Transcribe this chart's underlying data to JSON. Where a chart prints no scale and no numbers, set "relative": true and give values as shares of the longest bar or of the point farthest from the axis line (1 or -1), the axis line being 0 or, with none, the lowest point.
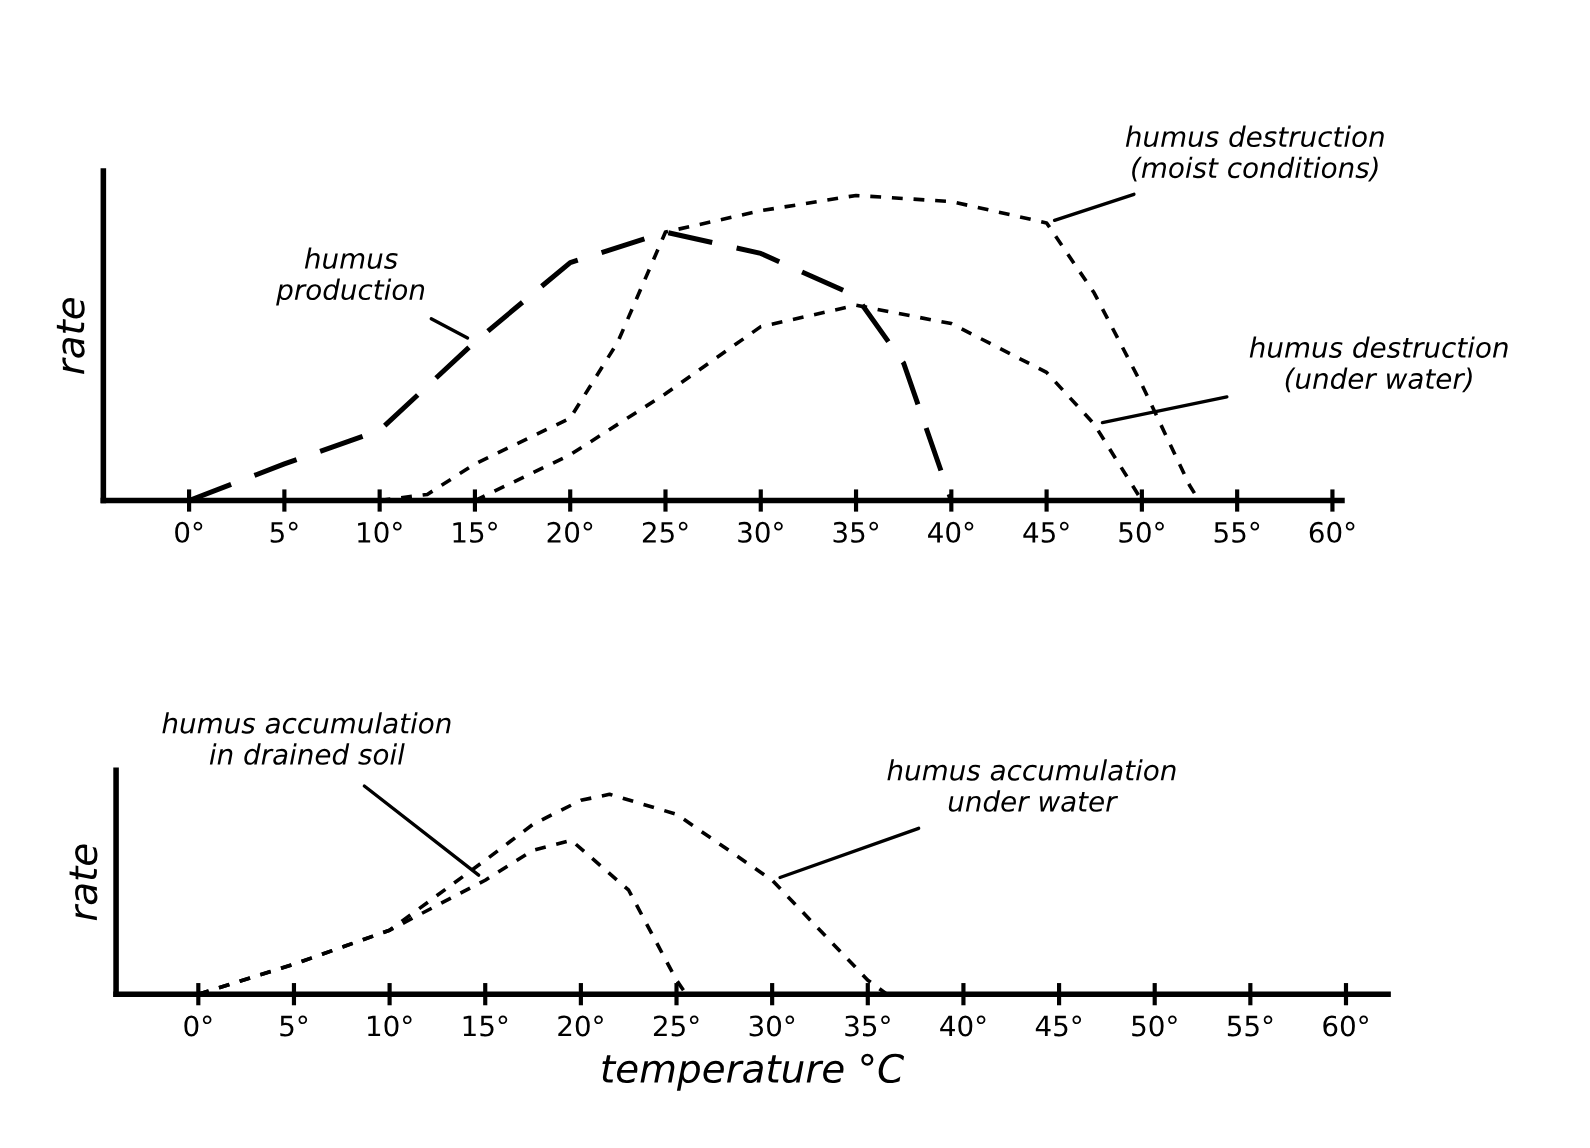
{
  "chart_data": [
    {
      "type": "line",
      "relative": true,
      "ylabel": "rate",
      "grid": false,
      "legend": false,
      "marker": "none",
      "tick_labels": "x",
      "xlim": [
        -4.5,
        60.5
      ],
      "xticks": [
        {
          "value": 0,
          "label": "0°"
        },
        {
          "value": 5,
          "label": "5°"
        },
        {
          "value": 10,
          "label": "10°"
        },
        {
          "value": 15,
          "label": "15°"
        },
        {
          "value": 20,
          "label": "20°"
        },
        {
          "value": 25,
          "label": "25°"
        },
        {
          "value": 30,
          "label": "30°"
        },
        {
          "value": 35,
          "label": "35°"
        },
        {
          "value": 40,
          "label": "40°"
        },
        {
          "value": 45,
          "label": "45°"
        },
        {
          "value": 50,
          "label": "50°"
        },
        {
          "value": 55,
          "label": "55°"
        },
        {
          "value": 60,
          "label": "60°"
        }
      ],
      "series": [
        {
          "name": "humus\nproduction",
          "color": "#000000",
          "line_style": "dashed",
          "x": [
            0,
            5,
            10,
            15,
            20,
            25,
            30,
            35,
            37.5,
            40
          ],
          "values": [
            0,
            0.12,
            0.23,
            0.52,
            0.78,
            0.88,
            0.81,
            0.67,
            0.45,
            0
          ]
        },
        {
          "name": "humus destruction\n(moist conditions)",
          "color": "#000000",
          "line_style": "dotted",
          "x": [
            10,
            12.5,
            15,
            20,
            22.5,
            25,
            30,
            35,
            40,
            45,
            47.5,
            50,
            52.5,
            53
          ],
          "values": [
            0,
            0.02,
            0.12,
            0.27,
            0.52,
            0.88,
            0.95,
            1,
            0.98,
            0.91,
            0.68,
            0.38,
            0.05,
            0
          ]
        },
        {
          "name": "humus destruction\n(under water)",
          "color": "#000000",
          "line_style": "dotted",
          "x": [
            15,
            20,
            25,
            30,
            35,
            40,
            45,
            47.5,
            50
          ],
          "values": [
            0,
            0.15,
            0.35,
            0.57,
            0.64,
            0.58,
            0.42,
            0.25,
            0
          ]
        }
      ]
    },
    {
      "type": "line",
      "relative": true,
      "ylabel": "rate",
      "xlabel": "temperature °C",
      "grid": false,
      "legend": false,
      "marker": "none",
      "tick_labels": "x",
      "xlim": [
        -4.3,
        62.2
      ],
      "xticks": [
        {
          "value": 0,
          "label": "0°"
        },
        {
          "value": 5,
          "label": "5°"
        },
        {
          "value": 10,
          "label": "10°"
        },
        {
          "value": 15,
          "label": "15°"
        },
        {
          "value": 20,
          "label": "20°"
        },
        {
          "value": 25,
          "label": "25°"
        },
        {
          "value": 30,
          "label": "30°"
        },
        {
          "value": 35,
          "label": "35°"
        },
        {
          "value": 40,
          "label": "40°"
        },
        {
          "value": 45,
          "label": "45°"
        },
        {
          "value": 50,
          "label": "50°"
        },
        {
          "value": 55,
          "label": "55°"
        },
        {
          "value": 60,
          "label": "60°"
        }
      ],
      "series": [
        {
          "name": "humus accumulation\nin drained soil",
          "color": "#000000",
          "line_style": "dotted",
          "x": [
            0,
            5,
            10,
            15,
            17.5,
            19.5,
            22.5,
            25,
            25.5
          ],
          "values": [
            0,
            0.15,
            0.32,
            0.57,
            0.72,
            0.77,
            0.52,
            0.07,
            0
          ]
        },
        {
          "name": "humus accumulation\nunder water",
          "color": "#000000",
          "line_style": "dotted",
          "x": [
            0,
            5,
            10,
            15,
            17.5,
            20,
            21.5,
            25,
            30,
            35,
            36
          ],
          "values": [
            0,
            0.15,
            0.32,
            0.67,
            0.85,
            0.97,
            1,
            0.9,
            0.57,
            0.07,
            0
          ]
        }
      ]
    }
  ]
}
